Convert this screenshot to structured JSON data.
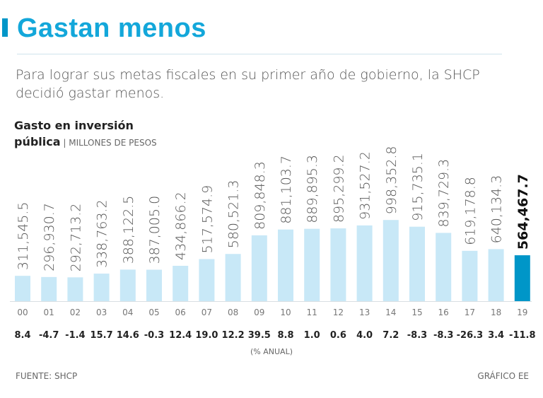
{
  "header": {
    "title": "Gastan menos",
    "subtitle": "Para lograr sus metas fiscales en su primer año de gobierno, la SHCP decidió gastar menos."
  },
  "colors": {
    "accent": "#0096c8",
    "title": "#13a7da",
    "bar": "#c8e8f7",
    "bar_highlight": "#0096c8"
  },
  "chart_data": {
    "type": "bar",
    "title_line1": "Gasto en inversión",
    "title_line2_bold": "pública",
    "title_line2_sep": " | ",
    "unit": "MILLONES DE PESOS",
    "categories": [
      "00",
      "01",
      "02",
      "03",
      "04",
      "05",
      "06",
      "07",
      "08",
      "09",
      "10",
      "11",
      "12",
      "13",
      "14",
      "15",
      "16",
      "17",
      "18",
      "19"
    ],
    "values": [
      311545.5,
      296930.7,
      292713.2,
      338763.2,
      388122.5,
      387005.0,
      434866.2,
      517574.9,
      580521.3,
      809848.3,
      881103.7,
      889895.3,
      895299.2,
      931527.2,
      998352.8,
      915735.1,
      839729.3,
      619178.8,
      640134.3,
      564467.7
    ],
    "value_labels": [
      "311,545.5",
      "296,930.7",
      "292,713.2",
      "338,763.2",
      "388,122.5",
      "387,005.0",
      "434,866.2",
      "517,574.9",
      "580,521.3",
      "809,848.3",
      "881,103.7",
      "889,895.3",
      "895,299.2",
      "931,527.2",
      "998,352.8",
      "915,735.1",
      "839,729.3",
      "619,178.8",
      "640,134.3",
      "564,467.7"
    ],
    "annual_change": [
      "8.4",
      "-4.7",
      "-1.4",
      "15.7",
      "14.6",
      "-0.3",
      "12.4",
      "19.0",
      "12.2",
      "39.5",
      "8.8",
      "1.0",
      "0.6",
      "4.0",
      "7.2",
      "-8.3",
      "-8.3",
      "-26.3",
      "3.4",
      "-11.8"
    ],
    "annual_change_label": "(% ANUAL)",
    "highlight_index": 19
  },
  "footer": {
    "source": "FUENTE: SHCP",
    "credit": "GRÁFICO EE"
  }
}
